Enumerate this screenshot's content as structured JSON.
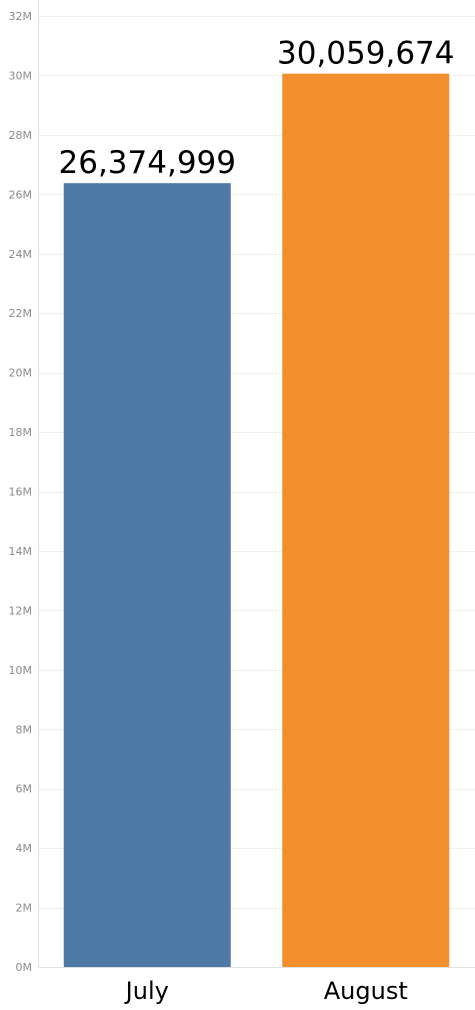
{
  "chart_data": {
    "type": "bar",
    "title": "",
    "xlabel": "",
    "ylabel": "",
    "categories": [
      "July",
      "August"
    ],
    "values": [
      26374999,
      30059674
    ],
    "value_labels": [
      "26,374,999",
      "30,059,674"
    ],
    "colors": [
      "#4e79a7",
      "#f28e2b"
    ],
    "ylim": [
      0,
      32000000
    ],
    "yticks": [
      0,
      2000000,
      4000000,
      6000000,
      8000000,
      10000000,
      12000000,
      14000000,
      16000000,
      18000000,
      20000000,
      22000000,
      24000000,
      26000000,
      28000000,
      30000000,
      32000000
    ],
    "ytick_labels": [
      "0M",
      "2M",
      "4M",
      "6M",
      "8M",
      "10M",
      "12M",
      "14M",
      "16M",
      "18M",
      "20M",
      "22M",
      "24M",
      "26M",
      "28M",
      "30M",
      "32M"
    ],
    "grid": true,
    "legend": "none"
  }
}
